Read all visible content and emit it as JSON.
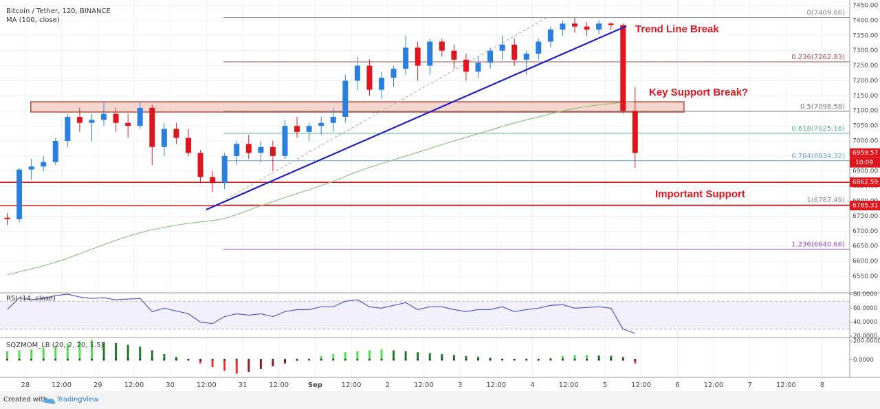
{
  "header": {
    "symbol": "Bitcoin / Tether, 120, BINANCE",
    "ma_label": "MA (100, close)"
  },
  "footer": {
    "created": "Created with",
    "brand": "TradingView"
  },
  "chart_data": {
    "type": "candlestick",
    "up_color": "#2a7fe0",
    "down_color": "#e0161e",
    "grid": true,
    "xlim": [
      -8.4,
      273.1
    ],
    "ylim": [
      6497.5,
      7468.3
    ],
    "xticks": [
      {
        "value": 0,
        "label": "28"
      },
      {
        "value": 12,
        "label": "12:00"
      },
      {
        "value": 24,
        "label": "29"
      },
      {
        "value": 36,
        "label": "12:00"
      },
      {
        "value": 48,
        "label": "30"
      },
      {
        "value": 60,
        "label": "12:00"
      },
      {
        "value": 72,
        "label": "31"
      },
      {
        "value": 84,
        "label": "12:00"
      },
      {
        "value": 96,
        "label": "Sep"
      },
      {
        "value": 108,
        "label": "12:00"
      },
      {
        "value": 120,
        "label": "2"
      },
      {
        "value": 132,
        "label": "12:00"
      },
      {
        "value": 144,
        "label": "3"
      },
      {
        "value": 156,
        "label": "12:00"
      },
      {
        "value": 168,
        "label": "4"
      },
      {
        "value": 180,
        "label": "12:00"
      },
      {
        "value": 192,
        "label": "5"
      },
      {
        "value": 204,
        "label": "12:00"
      },
      {
        "value": 216,
        "label": "6"
      },
      {
        "value": 228,
        "label": "12:00"
      },
      {
        "value": 240,
        "label": "7"
      },
      {
        "value": 252,
        "label": "12:00"
      },
      {
        "value": 264,
        "label": "8"
      }
    ],
    "yticks": [
      {
        "value": 6550,
        "label": "6550.00"
      },
      {
        "value": 6600,
        "label": "6600.00"
      },
      {
        "value": 6650,
        "label": "6650.00"
      },
      {
        "value": 6700,
        "label": "6700.00"
      },
      {
        "value": 6750,
        "label": "6750.00"
      },
      {
        "value": 6800,
        "label": "6800.00"
      },
      {
        "value": 6850,
        "label": "6850.00"
      },
      {
        "value": 6900,
        "label": "6900.00"
      },
      {
        "value": 6950,
        "label": "6950.00"
      },
      {
        "value": 7000,
        "label": "7000.00"
      },
      {
        "value": 7050,
        "label": "7050.00"
      },
      {
        "value": 7100,
        "label": "7100.00"
      },
      {
        "value": 7150,
        "label": "7150.00"
      },
      {
        "value": 7200,
        "label": "7200.00"
      },
      {
        "value": 7250,
        "label": "7250.00"
      },
      {
        "value": 7300,
        "label": "7300.00"
      },
      {
        "value": 7350,
        "label": "7350.00"
      },
      {
        "value": 7400,
        "label": "7400.00"
      },
      {
        "value": 7450,
        "label": "7450.00"
      }
    ],
    "candles": [
      {
        "t": -6,
        "o": 6745,
        "h": 6760,
        "l": 6720,
        "c": 6740
      },
      {
        "t": -2,
        "o": 6740,
        "h": 6910,
        "l": 6730,
        "c": 6905
      },
      {
        "t": 2,
        "o": 6905,
        "h": 6940,
        "l": 6870,
        "c": 6915
      },
      {
        "t": 6,
        "o": 6915,
        "h": 6950,
        "l": 6900,
        "c": 6930
      },
      {
        "t": 10,
        "o": 6930,
        "h": 7010,
        "l": 6920,
        "c": 7000
      },
      {
        "t": 14,
        "o": 7000,
        "h": 7090,
        "l": 6980,
        "c": 7080
      },
      {
        "t": 18,
        "o": 7080,
        "h": 7110,
        "l": 7030,
        "c": 7060
      },
      {
        "t": 22,
        "o": 7060,
        "h": 7090,
        "l": 7000,
        "c": 7070
      },
      {
        "t": 26,
        "o": 7070,
        "h": 7130,
        "l": 7050,
        "c": 7090
      },
      {
        "t": 30,
        "o": 7090,
        "h": 7110,
        "l": 7030,
        "c": 7060
      },
      {
        "t": 34,
        "o": 7060,
        "h": 7090,
        "l": 7010,
        "c": 7050
      },
      {
        "t": 38,
        "o": 7050,
        "h": 7130,
        "l": 7040,
        "c": 7110
      },
      {
        "t": 42,
        "o": 7110,
        "h": 7120,
        "l": 6920,
        "c": 6980
      },
      {
        "t": 46,
        "o": 6980,
        "h": 7060,
        "l": 6950,
        "c": 7040
      },
      {
        "t": 50,
        "o": 7040,
        "h": 7060,
        "l": 6990,
        "c": 7010
      },
      {
        "t": 54,
        "o": 7010,
        "h": 7040,
        "l": 6950,
        "c": 6960
      },
      {
        "t": 58,
        "o": 6960,
        "h": 6970,
        "l": 6860,
        "c": 6880
      },
      {
        "t": 62,
        "o": 6880,
        "h": 6900,
        "l": 6830,
        "c": 6860
      },
      {
        "t": 66,
        "o": 6860,
        "h": 6960,
        "l": 6840,
        "c": 6950
      },
      {
        "t": 70,
        "o": 6950,
        "h": 7000,
        "l": 6920,
        "c": 6990
      },
      {
        "t": 74,
        "o": 6990,
        "h": 7020,
        "l": 6940,
        "c": 6960
      },
      {
        "t": 78,
        "o": 6960,
        "h": 7000,
        "l": 6930,
        "c": 6980
      },
      {
        "t": 82,
        "o": 6980,
        "h": 7000,
        "l": 6900,
        "c": 6950
      },
      {
        "t": 86,
        "o": 6950,
        "h": 7070,
        "l": 6940,
        "c": 7050
      },
      {
        "t": 90,
        "o": 7050,
        "h": 7080,
        "l": 7010,
        "c": 7030
      },
      {
        "t": 94,
        "o": 7030,
        "h": 7060,
        "l": 7000,
        "c": 7050
      },
      {
        "t": 98,
        "o": 7050,
        "h": 7080,
        "l": 7020,
        "c": 7060
      },
      {
        "t": 102,
        "o": 7060,
        "h": 7110,
        "l": 7030,
        "c": 7080
      },
      {
        "t": 106,
        "o": 7080,
        "h": 7220,
        "l": 7060,
        "c": 7200
      },
      {
        "t": 110,
        "o": 7200,
        "h": 7280,
        "l": 7170,
        "c": 7250
      },
      {
        "t": 114,
        "o": 7250,
        "h": 7270,
        "l": 7150,
        "c": 7170
      },
      {
        "t": 118,
        "o": 7170,
        "h": 7230,
        "l": 7140,
        "c": 7210
      },
      {
        "t": 122,
        "o": 7210,
        "h": 7250,
        "l": 7180,
        "c": 7240
      },
      {
        "t": 126,
        "o": 7240,
        "h": 7350,
        "l": 7220,
        "c": 7310
      },
      {
        "t": 130,
        "o": 7310,
        "h": 7330,
        "l": 7200,
        "c": 7250
      },
      {
        "t": 134,
        "o": 7250,
        "h": 7340,
        "l": 7220,
        "c": 7330
      },
      {
        "t": 138,
        "o": 7330,
        "h": 7340,
        "l": 7280,
        "c": 7300
      },
      {
        "t": 142,
        "o": 7300,
        "h": 7320,
        "l": 7240,
        "c": 7270
      },
      {
        "t": 146,
        "o": 7270,
        "h": 7290,
        "l": 7200,
        "c": 7230
      },
      {
        "t": 150,
        "o": 7230,
        "h": 7280,
        "l": 7210,
        "c": 7260
      },
      {
        "t": 154,
        "o": 7260,
        "h": 7310,
        "l": 7240,
        "c": 7300
      },
      {
        "t": 158,
        "o": 7300,
        "h": 7350,
        "l": 7270,
        "c": 7320
      },
      {
        "t": 162,
        "o": 7320,
        "h": 7340,
        "l": 7250,
        "c": 7270
      },
      {
        "t": 166,
        "o": 7270,
        "h": 7300,
        "l": 7220,
        "c": 7290
      },
      {
        "t": 170,
        "o": 7290,
        "h": 7340,
        "l": 7270,
        "c": 7330
      },
      {
        "t": 174,
        "o": 7330,
        "h": 7380,
        "l": 7310,
        "c": 7370
      },
      {
        "t": 178,
        "o": 7370,
        "h": 7400,
        "l": 7350,
        "c": 7390
      },
      {
        "t": 182,
        "o": 7390,
        "h": 7410,
        "l": 7360,
        "c": 7380
      },
      {
        "t": 186,
        "o": 7380,
        "h": 7395,
        "l": 7350,
        "c": 7370
      },
      {
        "t": 190,
        "o": 7370,
        "h": 7400,
        "l": 7355,
        "c": 7390
      },
      {
        "t": 194,
        "o": 7390,
        "h": 7395,
        "l": 7370,
        "c": 7385
      },
      {
        "t": 198,
        "o": 7385,
        "h": 7390,
        "l": 7090,
        "c": 7100
      },
      {
        "t": 202,
        "o": 7100,
        "h": 7180,
        "l": 6910,
        "c": 6960
      }
    ],
    "ma": {
      "color": "#93c383",
      "values": [
        6555,
        6565,
        6575,
        6585,
        6597,
        6610,
        6625,
        6640,
        6655,
        6670,
        6683,
        6695,
        6705,
        6713,
        6720,
        6726,
        6731,
        6735,
        6742,
        6755,
        6770,
        6785,
        6798,
        6812,
        6825,
        6838,
        6852,
        6866,
        6882,
        6898,
        6912,
        6925,
        6937,
        6950,
        6962,
        6975,
        6988,
        7000,
        7012,
        7024,
        7036,
        7048,
        7060,
        7070,
        7080,
        7090,
        7100,
        7108,
        7115,
        7120,
        7124,
        7128,
        7132
      ]
    },
    "support_zone": {
      "x": [
        1.8,
        218.2
      ],
      "y": [
        7096,
        7130
      ],
      "fill": "#f3c9c0",
      "stroke": "#b5483a"
    },
    "trend_line": {
      "x": [
        59.9,
        199.1
      ],
      "y": [
        6771.6,
        7381.5
      ],
      "color": "#1f1fc8"
    },
    "fib_diagonal": {
      "x": [
        66.4,
        173
      ],
      "y": [
        6806,
        7411
      ],
      "color": "#aaaaaa"
    },
    "fib_start": 65.6,
    "fib_levels": [
      {
        "label": "0(7409.66)",
        "value": 7409.66,
        "color": "#8a8a8a"
      },
      {
        "label": "0.236(7262.83)",
        "value": 7262.83,
        "color": "#b24b4b"
      },
      {
        "label": "0.5(7098.58)",
        "value": 7098.58,
        "color": "#777777"
      },
      {
        "label": "0.618(7025.16)",
        "value": 7025.16,
        "color": "#5fb08f"
      },
      {
        "label": "0.764(6934.32)",
        "value": 6934.32,
        "color": "#6aa5c8"
      },
      {
        "label": "1(6787.49)",
        "value": 6787.49,
        "color": "#8a8a8a"
      },
      {
        "label": "1.236(6640.66)",
        "value": 6640.66,
        "color": "#9c4fc7"
      }
    ],
    "price_labels": [
      {
        "value": 6959.57,
        "color": "#e0161e",
        "line": false
      },
      {
        "value": 6862.59,
        "color": "#e0161e",
        "line": true
      },
      {
        "value": 6785.31,
        "color": "#e0161e",
        "line": true
      }
    ],
    "countdown": "10:09",
    "annotations": [
      "Trend Line Break",
      "Key Support Break?",
      "Important Support"
    ],
    "rsi": {
      "title": "RSI (14, close)",
      "color": "#5a56c8",
      "ylim": [
        18,
        82
      ],
      "bands": [
        70,
        30
      ],
      "yticks": [
        {
          "value": 80,
          "label": "80.0000"
        },
        {
          "value": 60,
          "label": "60.0000"
        },
        {
          "value": 40,
          "label": "40.0000"
        },
        {
          "value": 20,
          "label": "20.0000"
        }
      ],
      "values": [
        58,
        75,
        72,
        74,
        78,
        80,
        76,
        74,
        75,
        72,
        73,
        74,
        55,
        60,
        56,
        52,
        40,
        38,
        48,
        52,
        50,
        52,
        48,
        55,
        58,
        58,
        62,
        62,
        70,
        72,
        62,
        60,
        64,
        68,
        58,
        62,
        62,
        58,
        55,
        58,
        58,
        62,
        55,
        58,
        60,
        64,
        65,
        60,
        61,
        62,
        60,
        30,
        24
      ]
    },
    "sqz": {
      "title": "SQZMOM_LB (20, 2, 20, 1.5)",
      "ylim": [
        -190,
        238
      ],
      "colors": {
        "up_rising": "#4cde4c",
        "up_falling": "#1f7a2a",
        "down_falling": "#f03030",
        "down_rising": "#8a1c1c"
      },
      "yticks": [
        {
          "value": 200,
          "label": "200.0000"
        },
        {
          "value": 0,
          "label": "0.0000"
        }
      ],
      "values": [
        90,
        100,
        110,
        130,
        150,
        170,
        200,
        210,
        190,
        180,
        160,
        140,
        100,
        60,
        30,
        10,
        -40,
        -80,
        -120,
        -150,
        -130,
        -100,
        -70,
        -40,
        -10,
        10,
        40,
        60,
        80,
        90,
        100,
        110,
        100,
        90,
        80,
        70,
        60,
        50,
        40,
        30,
        20,
        10,
        5,
        5,
        10,
        20,
        40,
        50,
        50,
        45,
        40,
        30,
        -40
      ]
    }
  }
}
